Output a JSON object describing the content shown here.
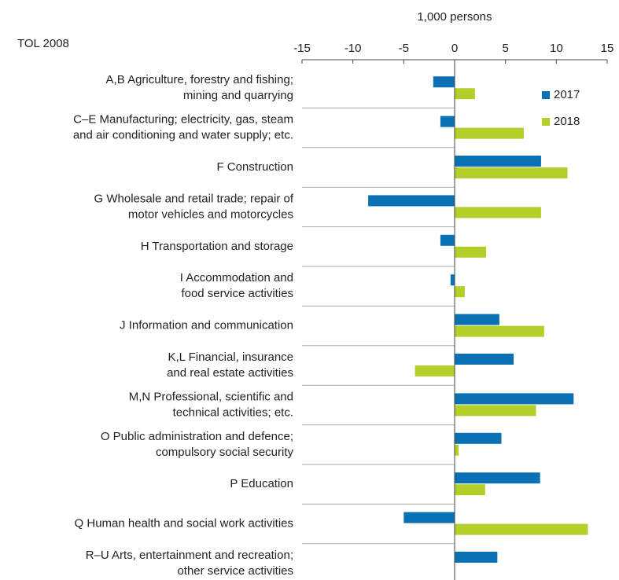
{
  "chart_data": {
    "type": "barh",
    "title": "TOL 2008",
    "x_label": "1,000 persons",
    "categories": [
      [
        "A,B Agriculture, forestry and fishing;",
        "mining and quarrying"
      ],
      [
        "C–E Manufacturing; electricity, gas, steam",
        "and air conditioning and water supply; etc."
      ],
      [
        "F Construction"
      ],
      [
        "G Wholesale and retail trade; repair of",
        "motor vehicles and motorcycles"
      ],
      [
        "H Transportation and storage"
      ],
      [
        "I Accommodation and",
        "food service activities"
      ],
      [
        "J Information and communication"
      ],
      [
        "K,L Financial, insurance",
        "and real estate activities"
      ],
      [
        "M,N Professional, scientific and",
        "technical activities; etc."
      ],
      [
        "O Public administration and defence;",
        "compulsory social security"
      ],
      [
        "P Education"
      ],
      [
        "Q Human health and social work activities"
      ],
      [
        "R–U Arts, entertainment and recreation;",
        "other service activities"
      ]
    ],
    "series": [
      {
        "name": "2017",
        "color": "#0a72b4",
        "values": [
          -2.1,
          -1.4,
          8.5,
          -8.5,
          -1.4,
          -0.4,
          4.4,
          5.8,
          11.7,
          4.6,
          8.4,
          -5.0,
          4.2
        ]
      },
      {
        "name": "2018",
        "color": "#b5cf2a",
        "values": [
          2.0,
          6.8,
          11.1,
          8.5,
          3.1,
          1.0,
          8.8,
          -3.9,
          8.0,
          0.4,
          3.0,
          13.1,
          null
        ]
      }
    ],
    "xlim": [
      -15,
      15
    ],
    "xticks": [
      -15,
      -10,
      -5,
      0,
      5,
      10,
      15
    ],
    "legend": "upper right"
  }
}
